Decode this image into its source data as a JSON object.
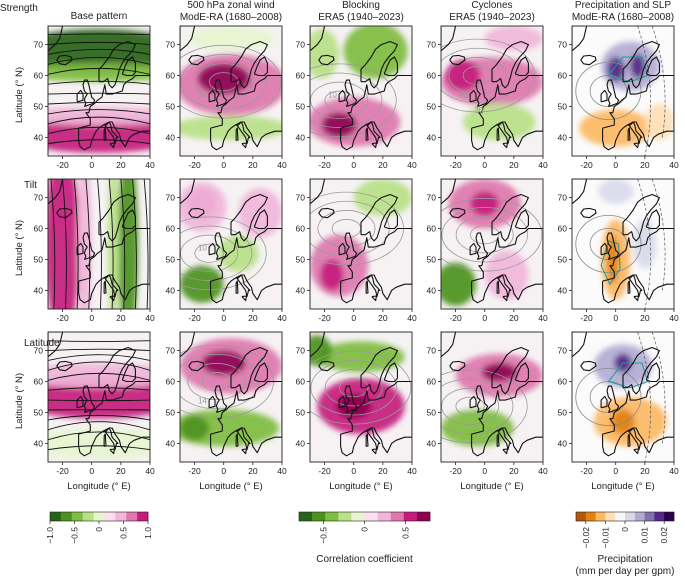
{
  "chart_data": {
    "type": "heatmap",
    "column_titles": [
      [
        "Base pattern"
      ],
      [
        "500 hPa zonal wind",
        "ModE-RA (1680–2008)"
      ],
      [
        "Blocking",
        "ERA5 (1940–2023)"
      ],
      [
        "Cyclones",
        "ERA5 (1940–2023)"
      ],
      [
        "Precipitation and SLP",
        "ModE-RA (1680–2008)"
      ]
    ],
    "row_labels": [
      "Strength",
      "Tilt",
      "Latitude"
    ],
    "xlabel": "Longitude (° E)",
    "ylabel": "Latitude (° N)",
    "xlim": [
      -30,
      40
    ],
    "ylim": [
      34,
      76
    ],
    "xticks": [
      -20,
      0,
      20,
      40
    ],
    "yticks": [
      40,
      50,
      60,
      70
    ],
    "contour_labels": [
      {
        "row": 0,
        "col": 1,
        "text": "16"
      },
      {
        "row": 0,
        "col": 2,
        "text": "10"
      },
      {
        "row": 0,
        "col": 3,
        "text": "40"
      },
      {
        "row": 0,
        "col": 3,
        "text": "30"
      },
      {
        "row": 1,
        "col": 1,
        "text": "10"
      },
      {
        "row": 2,
        "col": 1,
        "text": "14"
      }
    ],
    "colorbars": [
      {
        "label": "",
        "ticks": [
          "−1.0",
          "−0.5",
          "0",
          "0.5",
          "1.0"
        ],
        "range": [
          -1.0,
          1.0
        ],
        "colors": [
          "#276419",
          "#4d9221",
          "#7fbc41",
          "#b8e186",
          "#e6f5d0",
          "#fde0ef",
          "#f1b6da",
          "#de77ae",
          "#c51b7d"
        ]
      },
      {
        "label": "Correlation coefficient",
        "ticks": [
          "−0.5",
          "0",
          "0.5"
        ],
        "range": [
          -0.8,
          0.8
        ],
        "colors": [
          "#276419",
          "#4d9221",
          "#7fbc41",
          "#b8e186",
          "#e6f5d0",
          "#fde0ef",
          "#f1b6da",
          "#de77ae",
          "#c51b7d",
          "#8e0152"
        ]
      },
      {
        "label": "Precipitation",
        "label2": "(mm per day per gpm)",
        "ticks": [
          "−0.02",
          "−0.01",
          "0",
          "0.01",
          "0.02"
        ],
        "range": [
          -0.025,
          0.025
        ],
        "colors": [
          "#b35806",
          "#e08214",
          "#fdb863",
          "#fee0b6",
          "#f7f7f7",
          "#d8daeb",
          "#b2abd2",
          "#8073ac",
          "#542788",
          "#2d004b"
        ]
      }
    ],
    "panels": [
      [
        {
          "col": 0,
          "row": 0,
          "blobs": [
            {
              "lon": 5,
              "lat": 68,
              "rx": 60,
              "ry": 7,
              "v": -0.9
            },
            {
              "lon": 5,
              "lat": 61,
              "rx": 60,
              "ry": 3,
              "v": -0.45
            },
            {
              "lon": 5,
              "lat": 41,
              "rx": 60,
              "ry": 6,
              "v": 0.8
            },
            {
              "lon": 5,
              "lat": 47,
              "rx": 60,
              "ry": 3,
              "v": 0.35
            }
          ]
        },
        {
          "col": 1,
          "row": 0,
          "blobs": [
            {
              "lon": 5,
              "lat": 57,
              "rx": 38,
              "ry": 10,
              "v": 0.65
            },
            {
              "lon": 0,
              "lat": 59,
              "rx": 18,
              "ry": 5,
              "v": 0.95
            },
            {
              "lon": 5,
              "lat": 43,
              "rx": 40,
              "ry": 4,
              "v": -0.35
            },
            {
              "lon": 5,
              "lat": 72,
              "rx": 30,
              "ry": 4,
              "v": -0.2
            }
          ]
        },
        {
          "col": 2,
          "row": 0,
          "blobs": [
            {
              "lon": 15,
              "lat": 68,
              "rx": 22,
              "ry": 9,
              "v": -0.65
            },
            {
              "lon": -22,
              "lat": 67,
              "rx": 12,
              "ry": 8,
              "v": -0.4
            },
            {
              "lon": 0,
              "lat": 45,
              "rx": 32,
              "ry": 8,
              "v": 0.55
            },
            {
              "lon": -10,
              "lat": 44,
              "rx": 12,
              "ry": 4,
              "v": 0.9
            }
          ]
        },
        {
          "col": 3,
          "row": 0,
          "blobs": [
            {
              "lon": 5,
              "lat": 58,
              "rx": 35,
              "ry": 8,
              "v": 0.55
            },
            {
              "lon": -15,
              "lat": 60,
              "rx": 12,
              "ry": 5,
              "v": 0.85
            },
            {
              "lon": 10,
              "lat": 45,
              "rx": 25,
              "ry": 6,
              "v": -0.35
            },
            {
              "lon": 20,
              "lat": 72,
              "rx": 20,
              "ry": 4,
              "v": 0.3
            }
          ]
        },
        {
          "col": 4,
          "row": 0,
          "blobs": [
            {
              "lon": 10,
              "lat": 63,
              "rx": 20,
              "ry": 8,
              "v": 0.35
            },
            {
              "lon": 0,
              "lat": 62,
              "rx": 6,
              "ry": 4,
              "v": 0.8
            },
            {
              "lon": 15,
              "lat": 63,
              "rx": 5,
              "ry": 4,
              "v": 0.75
            },
            {
              "lon": 0,
              "lat": 43,
              "rx": 25,
              "ry": 6,
              "v": -0.45
            },
            {
              "lon": 30,
              "lat": 45,
              "rx": 10,
              "ry": 6,
              "v": -0.35
            }
          ]
        }
      ],
      [
        {
          "col": 0,
          "row": 1,
          "blobs": [
            {
              "lon": -20,
              "lat": 55,
              "rx": 12,
              "ry": 30,
              "v": 0.85
            },
            {
              "lon": -5,
              "lat": 55,
              "rx": 5,
              "ry": 30,
              "v": 0.3
            },
            {
              "lon": 25,
              "lat": 55,
              "rx": 7,
              "ry": 30,
              "v": -0.85
            },
            {
              "lon": 15,
              "lat": 55,
              "rx": 4,
              "ry": 30,
              "v": -0.35
            }
          ]
        },
        {
          "col": 1,
          "row": 1,
          "blobs": [
            {
              "lon": -15,
              "lat": 68,
              "rx": 10,
              "ry": 5,
              "v": 0.85
            },
            {
              "lon": -15,
              "lat": 67,
              "rx": 17,
              "ry": 8,
              "v": 0.4
            },
            {
              "lon": -15,
              "lat": 42,
              "rx": 15,
              "ry": 6,
              "v": -0.7
            },
            {
              "lon": 25,
              "lat": 65,
              "rx": 15,
              "ry": 8,
              "v": 0.3
            },
            {
              "lon": 10,
              "lat": 52,
              "rx": 14,
              "ry": 6,
              "v": -0.3
            }
          ]
        },
        {
          "col": 2,
          "row": 1,
          "blobs": [
            {
              "lon": -10,
              "lat": 48,
              "rx": 20,
              "ry": 10,
              "v": 0.45
            },
            {
              "lon": -15,
              "lat": 45,
              "rx": 8,
              "ry": 5,
              "v": 0.85
            },
            {
              "lon": 20,
              "lat": 70,
              "rx": 20,
              "ry": 6,
              "v": -0.35
            }
          ]
        },
        {
          "col": 3,
          "row": 1,
          "blobs": [
            {
              "lon": 0,
              "lat": 68,
              "rx": 25,
              "ry": 8,
              "v": 0.5
            },
            {
              "lon": 0,
              "lat": 68,
              "rx": 10,
              "ry": 4,
              "v": 0.75
            },
            {
              "lon": -20,
              "lat": 42,
              "rx": 14,
              "ry": 7,
              "v": -0.75
            },
            {
              "lon": 15,
              "lat": 45,
              "rx": 15,
              "ry": 8,
              "v": 0.3
            }
          ]
        },
        {
          "col": 4,
          "row": 1,
          "blobs": [
            {
              "lon": 0,
              "lat": 50,
              "rx": 10,
              "ry": 13,
              "v": -0.5
            },
            {
              "lon": -2,
              "lat": 50,
              "rx": 4,
              "ry": 8,
              "v": -0.85
            },
            {
              "lon": 20,
              "lat": 55,
              "rx": 8,
              "ry": 8,
              "v": 0.2
            },
            {
              "lon": 0,
              "lat": 72,
              "rx": 12,
              "ry": 4,
              "v": 0.2
            }
          ]
        }
      ],
      [
        {
          "col": 0,
          "row": 2,
          "blobs": [
            {
              "lon": 5,
              "lat": 55,
              "rx": 60,
              "ry": 7,
              "v": 0.8
            },
            {
              "lon": 5,
              "lat": 62,
              "rx": 60,
              "ry": 4,
              "v": 0.35
            },
            {
              "lon": 5,
              "lat": 40,
              "rx": 60,
              "ry": 5,
              "v": -0.2
            }
          ]
        },
        {
          "col": 1,
          "row": 2,
          "blobs": [
            {
              "lon": 5,
              "lat": 65,
              "rx": 35,
              "ry": 9,
              "v": 0.65
            },
            {
              "lon": 0,
              "lat": 66,
              "rx": 15,
              "ry": 4,
              "v": 0.95
            },
            {
              "lon": 0,
              "lat": 45,
              "rx": 38,
              "ry": 6,
              "v": -0.55
            },
            {
              "lon": -20,
              "lat": 45,
              "rx": 10,
              "ry": 4,
              "v": -0.8
            }
          ]
        },
        {
          "col": 2,
          "row": 2,
          "blobs": [
            {
              "lon": 5,
              "lat": 52,
              "rx": 30,
              "ry": 9,
              "v": 0.75
            },
            {
              "lon": 0,
              "lat": 52,
              "rx": 12,
              "ry": 4,
              "v": 0.95
            },
            {
              "lon": 5,
              "lat": 68,
              "rx": 30,
              "ry": 5,
              "v": -0.55
            },
            {
              "lon": -25,
              "lat": 70,
              "rx": 10,
              "ry": 5,
              "v": -0.7
            }
          ]
        },
        {
          "col": 3,
          "row": 2,
          "blobs": [
            {
              "lon": 10,
              "lat": 62,
              "rx": 30,
              "ry": 7,
              "v": 0.65
            },
            {
              "lon": 10,
              "lat": 63,
              "rx": 12,
              "ry": 3,
              "v": 0.9
            },
            {
              "lon": -5,
              "lat": 45,
              "rx": 25,
              "ry": 6,
              "v": -0.6
            }
          ]
        },
        {
          "col": 4,
          "row": 2,
          "blobs": [
            {
              "lon": 5,
              "lat": 65,
              "rx": 20,
              "ry": 7,
              "v": 0.4
            },
            {
              "lon": 5,
              "lat": 66,
              "rx": 6,
              "ry": 3,
              "v": 0.8
            },
            {
              "lon": 10,
              "lat": 47,
              "rx": 25,
              "ry": 8,
              "v": -0.45
            },
            {
              "lon": 5,
              "lat": 47,
              "rx": 8,
              "ry": 4,
              "v": -0.75
            }
          ]
        }
      ]
    ]
  }
}
